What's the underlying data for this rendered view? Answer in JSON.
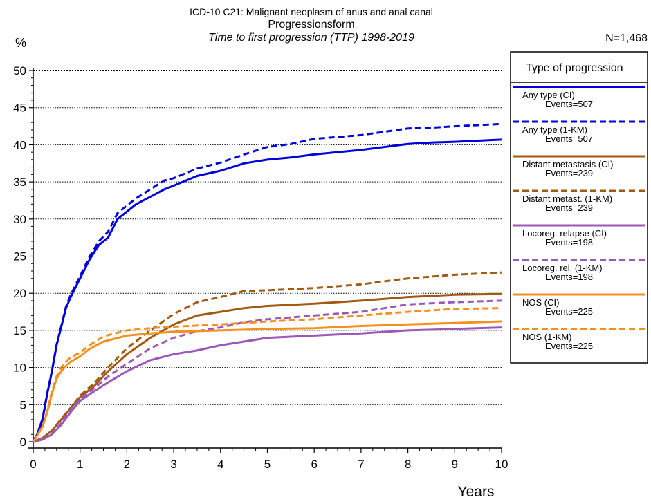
{
  "chart_data": {
    "type": "line",
    "title": "ICD-10 C21: Malignant neoplasm of anus and anal canal",
    "subtitle": "Progressionsform",
    "subtitle2": "Time to first progression (TTP) 1998-2019",
    "ylabel": "%",
    "xlabel": "Years",
    "n_label": "N=1,468",
    "legend_title": "Type of progression",
    "xlim": [
      0,
      10
    ],
    "ylim": [
      0,
      50
    ],
    "x_ticks": [
      0,
      1,
      2,
      3,
      4,
      5,
      6,
      7,
      8,
      9,
      10
    ],
    "y_ticks": [
      0,
      5,
      10,
      15,
      20,
      25,
      30,
      35,
      40,
      45,
      50
    ],
    "grid": "horizontal dotted",
    "legend_position": "right",
    "series": [
      {
        "name": "Any type (CI)",
        "events": "Events=507",
        "color": "#0000dd",
        "dash": "solid",
        "x": [
          0,
          0.1,
          0.2,
          0.3,
          0.4,
          0.5,
          0.6,
          0.7,
          0.8,
          1.0,
          1.2,
          1.4,
          1.6,
          1.8,
          2.0,
          2.2,
          2.5,
          2.8,
          3.0,
          3.5,
          4.0,
          4.5,
          5.0,
          5.5,
          6.0,
          7.0,
          8.0,
          8.5,
          9.0,
          10.0
        ],
        "y": [
          0,
          1.2,
          3.0,
          6.5,
          9.5,
          13.0,
          15.5,
          18.0,
          19.5,
          22.0,
          24.5,
          26.5,
          27.5,
          30.0,
          31.0,
          32.0,
          33.0,
          34.0,
          34.5,
          35.8,
          36.5,
          37.5,
          38.0,
          38.3,
          38.7,
          39.3,
          40.1,
          40.3,
          40.4,
          40.7
        ]
      },
      {
        "name": "Any type (1-KM)",
        "events": "Events=507",
        "color": "#0000dd",
        "dash": "dashed",
        "x": [
          0,
          0.1,
          0.2,
          0.3,
          0.4,
          0.5,
          0.6,
          0.7,
          0.8,
          1.0,
          1.2,
          1.4,
          1.6,
          1.8,
          2.0,
          2.2,
          2.5,
          2.8,
          3.0,
          3.5,
          4.0,
          4.5,
          5.0,
          5.5,
          6.0,
          7.0,
          8.0,
          8.5,
          9.0,
          10.0
        ],
        "y": [
          0,
          1.3,
          3.1,
          6.6,
          9.6,
          13.1,
          15.6,
          18.2,
          19.8,
          22.3,
          24.9,
          27.0,
          28.3,
          30.8,
          31.8,
          32.8,
          34.0,
          35.2,
          35.5,
          36.8,
          37.6,
          38.7,
          39.7,
          40.1,
          40.8,
          41.3,
          42.2,
          42.3,
          42.5,
          42.8
        ]
      },
      {
        "name": "Distant metastasis (CI)",
        "events": "Events=239",
        "color": "#a05a14",
        "dash": "solid",
        "x": [
          0,
          0.2,
          0.4,
          0.6,
          0.8,
          1.0,
          1.3,
          1.6,
          2.0,
          2.5,
          3.0,
          3.5,
          4.0,
          4.5,
          5.0,
          6.0,
          7.0,
          8.0,
          9.0,
          10.0
        ],
        "y": [
          0,
          0.5,
          1.5,
          3.0,
          4.5,
          6.0,
          7.5,
          9.5,
          11.8,
          14.0,
          15.8,
          17.0,
          17.5,
          18.0,
          18.3,
          18.6,
          19.0,
          19.5,
          19.8,
          19.9
        ]
      },
      {
        "name": "Distant metast. (1-KM)",
        "events": "Events=239",
        "color": "#a05a14",
        "dash": "dashed",
        "x": [
          0,
          0.2,
          0.4,
          0.6,
          0.8,
          1.0,
          1.3,
          1.6,
          2.0,
          2.5,
          3.0,
          3.5,
          4.0,
          4.5,
          5.0,
          6.0,
          7.0,
          8.0,
          9.0,
          10.0
        ],
        "y": [
          0,
          0.5,
          1.5,
          3.1,
          4.6,
          6.2,
          7.9,
          10.0,
          12.6,
          15.0,
          17.2,
          18.8,
          19.5,
          20.3,
          20.4,
          20.7,
          21.2,
          22.0,
          22.5,
          22.8
        ]
      },
      {
        "name": "Locoreg. relapse (CI)",
        "events": "Events=198",
        "color": "#9b59b6",
        "dash": "solid",
        "x": [
          0,
          0.2,
          0.4,
          0.6,
          0.8,
          1.0,
          1.3,
          1.6,
          2.0,
          2.5,
          3.0,
          3.5,
          4.0,
          4.5,
          5.0,
          6.0,
          7.0,
          8.0,
          9.0,
          10.0
        ],
        "y": [
          0,
          0.3,
          1.0,
          2.3,
          4.0,
          5.5,
          6.8,
          8.0,
          9.5,
          11.0,
          11.8,
          12.3,
          13.0,
          13.5,
          14.0,
          14.3,
          14.6,
          15.0,
          15.2,
          15.4
        ]
      },
      {
        "name": "Locoreg. rel. (1-KM)",
        "events": "Events=198",
        "color": "#9b59b6",
        "dash": "dashed",
        "x": [
          0,
          0.2,
          0.4,
          0.6,
          0.8,
          1.0,
          1.3,
          1.6,
          2.0,
          2.5,
          3.0,
          3.5,
          4.0,
          4.5,
          5.0,
          6.0,
          7.0,
          8.0,
          9.0,
          10.0
        ],
        "y": [
          0,
          0.3,
          1.1,
          2.5,
          4.3,
          5.8,
          7.2,
          8.8,
          10.5,
          12.6,
          14.0,
          14.9,
          15.4,
          16.1,
          16.5,
          17.0,
          17.5,
          18.5,
          18.8,
          19.0
        ]
      },
      {
        "name": "NOS (CI)",
        "events": "Events=225",
        "color": "#f5901e",
        "dash": "solid",
        "x": [
          0,
          0.1,
          0.2,
          0.3,
          0.4,
          0.5,
          0.6,
          0.7,
          0.8,
          1.0,
          1.2,
          1.5,
          2.0,
          2.5,
          3.0,
          4.0,
          5.0,
          6.0,
          7.0,
          8.0,
          9.0,
          10.0
        ],
        "y": [
          0,
          1.0,
          2.0,
          4.0,
          6.5,
          8.5,
          9.5,
          10.2,
          10.8,
          11.5,
          12.5,
          13.5,
          14.3,
          14.6,
          14.8,
          15.0,
          15.2,
          15.3,
          15.6,
          15.8,
          16.0,
          16.2
        ]
      },
      {
        "name": "NOS (1-KM)",
        "events": "Events=225",
        "color": "#f5901e",
        "dash": "dashed",
        "x": [
          0,
          0.1,
          0.2,
          0.3,
          0.4,
          0.5,
          0.6,
          0.7,
          0.8,
          1.0,
          1.2,
          1.5,
          2.0,
          2.5,
          3.0,
          4.0,
          5.0,
          6.0,
          7.0,
          8.0,
          9.0,
          10.0
        ],
        "y": [
          0,
          1.0,
          2.1,
          4.2,
          6.8,
          8.8,
          10.0,
          10.8,
          11.4,
          12.0,
          13.0,
          14.2,
          15.0,
          15.3,
          15.5,
          15.8,
          16.2,
          16.5,
          17.0,
          17.5,
          17.9,
          18.0
        ]
      }
    ]
  }
}
